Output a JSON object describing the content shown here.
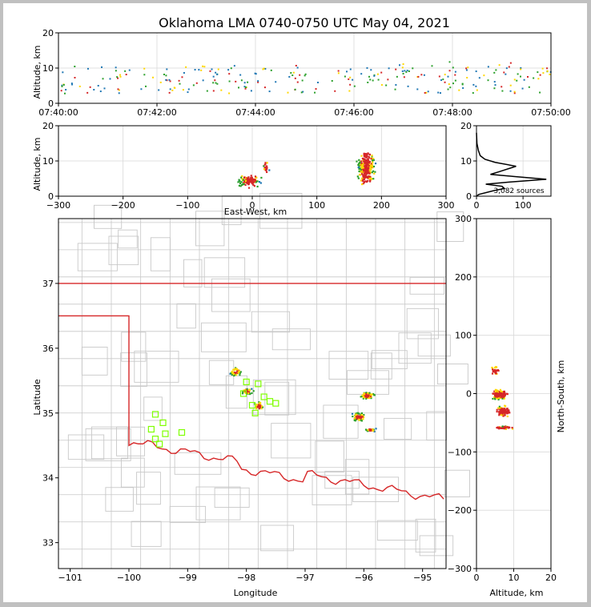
{
  "chart_data": {
    "title": "Oklahoma LMA 0740-0750 UTC May 04, 2021",
    "colors": {
      "cool": "#1f77b4",
      "mid": "#2ca02c",
      "warm": "#ffd700",
      "hot": "#d62728",
      "grid": "#d9d9d9",
      "county": "#c8c8c8",
      "state": "#d62728",
      "network": "#7fff00"
    },
    "panels": [
      {
        "id": "time-height",
        "type": "heatmap",
        "ylabel": "Altitude, km",
        "xticks": [
          "07:40:00",
          "07:42:00",
          "07:44:00",
          "07:46:00",
          "07:48:00",
          "07:50:00"
        ],
        "xlim": [
          0,
          10
        ],
        "ylim": [
          0,
          20
        ],
        "yticks": [
          "0",
          "10",
          "20"
        ]
      },
      {
        "id": "ew-height",
        "type": "heatmap",
        "xlabel": "East-West, km",
        "ylabel": "Altitude, km",
        "xlim": [
          -300,
          300
        ],
        "ylim": [
          0,
          20
        ],
        "xticks": [
          "−300",
          "−200",
          "−100",
          "0",
          "100",
          "200",
          "300"
        ],
        "yticks": [
          "0",
          "10",
          "20"
        ]
      },
      {
        "id": "altitude-histogram",
        "type": "line",
        "annotation": "3,082 sources",
        "xlim": [
          0,
          160
        ],
        "ylim": [
          0,
          20
        ],
        "xticks": [
          "0",
          "100"
        ],
        "yticks": [
          "0",
          "10",
          "20"
        ],
        "profile": [
          [
            0,
            0.0
          ],
          [
            5,
            0.5
          ],
          [
            35,
            1.5
          ],
          [
            60,
            2.2
          ],
          [
            55,
            2.8
          ],
          [
            20,
            3.4
          ],
          [
            70,
            4.0
          ],
          [
            150,
            4.8
          ],
          [
            80,
            5.6
          ],
          [
            30,
            6.2
          ],
          [
            50,
            7.0
          ],
          [
            85,
            8.5
          ],
          [
            40,
            9.6
          ],
          [
            18,
            10.5
          ],
          [
            8,
            11.5
          ],
          [
            4,
            13
          ],
          [
            1,
            15
          ],
          [
            0,
            18
          ]
        ]
      },
      {
        "id": "plan-view",
        "type": "scatter",
        "xlabel": "Longitude",
        "ylabel": "Latitude",
        "xlim": [
          -101.2,
          -94.6
        ],
        "ylim": [
          32.6,
          38.0
        ],
        "xticks": [
          "−101",
          "−100",
          "−99",
          "−98",
          "−97",
          "−96",
          "−95"
        ],
        "yticks": [
          "33",
          "34",
          "35",
          "36",
          "37"
        ],
        "network_stations": [
          [
            -99.55,
            34.98
          ],
          [
            -99.42,
            34.85
          ],
          [
            -99.62,
            34.75
          ],
          [
            -99.38,
            34.68
          ],
          [
            -99.55,
            34.6
          ],
          [
            -99.48,
            34.52
          ],
          [
            -99.1,
            34.7
          ],
          [
            -98.0,
            35.48
          ],
          [
            -97.8,
            35.45
          ],
          [
            -98.05,
            35.3
          ],
          [
            -97.7,
            35.25
          ],
          [
            -97.6,
            35.18
          ],
          [
            -97.9,
            35.12
          ],
          [
            -97.5,
            35.15
          ],
          [
            -97.85,
            35.0
          ]
        ]
      },
      {
        "id": "ns-height",
        "type": "heatmap",
        "xlabel": "Altitude, km",
        "ylabel": "North-South, km",
        "xlim": [
          0,
          20
        ],
        "ylim": [
          -300,
          300
        ],
        "xticks": [
          "0",
          "10",
          "20"
        ],
        "yticks": [
          "−300",
          "−200",
          "−100",
          "0",
          "100",
          "200",
          "300"
        ]
      }
    ]
  }
}
